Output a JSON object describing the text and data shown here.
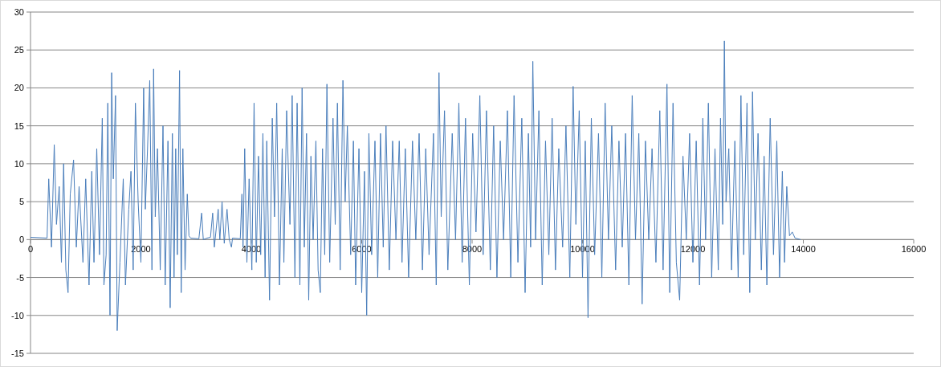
{
  "chart_data": {
    "type": "line",
    "xlim": [
      0,
      16000
    ],
    "xticks": [
      0,
      2000,
      4000,
      6000,
      8000,
      10000,
      12000,
      14000,
      16000
    ],
    "ylim": [
      -15,
      30
    ],
    "yticks": [
      -15,
      -10,
      -5,
      0,
      5,
      10,
      15,
      20,
      25,
      30
    ],
    "grid": "y",
    "marker": "none",
    "line_style": "solid",
    "series": [
      {
        "color": "#4a7ebb",
        "x": [
          0,
          300,
          330,
          380,
          430,
          470,
          520,
          560,
          600,
          640,
          680,
          720,
          780,
          830,
          880,
          950,
          1000,
          1060,
          1110,
          1150,
          1200,
          1250,
          1300,
          1330,
          1370,
          1400,
          1440,
          1470,
          1500,
          1540,
          1570,
          1620,
          1680,
          1720,
          1780,
          1820,
          1860,
          1900,
          1950,
          2000,
          2050,
          2080,
          2120,
          2160,
          2200,
          2230,
          2260,
          2300,
          2350,
          2400,
          2440,
          2490,
          2530,
          2570,
          2600,
          2630,
          2660,
          2700,
          2730,
          2760,
          2800,
          2840,
          2870,
          2900,
          3050,
          3100,
          3130,
          3200,
          3260,
          3300,
          3330,
          3400,
          3430,
          3470,
          3510,
          3560,
          3600,
          3640,
          3660,
          3800,
          3830,
          3850,
          3880,
          3920,
          3960,
          4010,
          4050,
          4090,
          4130,
          4170,
          4210,
          4250,
          4280,
          4330,
          4380,
          4420,
          4460,
          4510,
          4560,
          4590,
          4640,
          4700,
          4740,
          4790,
          4830,
          4880,
          4920,
          4960,
          5000,
          5040,
          5080,
          5120,
          5170,
          5210,
          5250,
          5290,
          5330,
          5370,
          5420,
          5480,
          5520,
          5560,
          5610,
          5660,
          5700,
          5740,
          5800,
          5850,
          5890,
          5950,
          6000,
          6050,
          6090,
          6130,
          6180,
          6240,
          6290,
          6340,
          6390,
          6440,
          6500,
          6560,
          6620,
          6680,
          6730,
          6790,
          6850,
          6920,
          6980,
          7040,
          7100,
          7160,
          7220,
          7300,
          7350,
          7400,
          7440,
          7500,
          7560,
          7640,
          7700,
          7760,
          7820,
          7880,
          7950,
          8010,
          8070,
          8140,
          8200,
          8260,
          8330,
          8390,
          8450,
          8510,
          8570,
          8640,
          8700,
          8760,
          8830,
          8900,
          8960,
          9020,
          9060,
          9100,
          9150,
          9210,
          9270,
          9330,
          9390,
          9450,
          9510,
          9570,
          9640,
          9700,
          9770,
          9830,
          9880,
          9940,
          10000,
          10050,
          10100,
          10160,
          10220,
          10290,
          10350,
          10410,
          10470,
          10530,
          10600,
          10660,
          10720,
          10780,
          10840,
          10900,
          10960,
          11020,
          11080,
          11140,
          11200,
          11260,
          11330,
          11400,
          11460,
          11530,
          11580,
          11640,
          11700,
          11760,
          11820,
          11880,
          11940,
          12000,
          12060,
          12120,
          12180,
          12230,
          12280,
          12340,
          12400,
          12460,
          12500,
          12540,
          12570,
          12600,
          12650,
          12700,
          12760,
          12820,
          12870,
          12920,
          12980,
          13030,
          13080,
          13130,
          13180,
          13240,
          13290,
          13340,
          13400,
          13460,
          13520,
          13570,
          13620,
          13660,
          13700,
          13750,
          13800,
          13850,
          13950
        ],
        "values": [
          0.3,
          0.2,
          8,
          -1,
          12.5,
          2,
          7,
          -3,
          10,
          -4,
          -7,
          6,
          10.5,
          -1,
          7,
          -3,
          8,
          -6,
          9,
          -3,
          12,
          -2,
          16,
          -6,
          -2,
          18,
          -10,
          22,
          8,
          19,
          -12,
          -3,
          8,
          -6,
          4,
          9,
          -4,
          18,
          5,
          -3,
          20,
          4,
          12,
          21,
          -4,
          22.5,
          3,
          12,
          -4,
          15,
          -6,
          13,
          -9,
          14,
          -5,
          12,
          -2,
          22.3,
          -7,
          12,
          -4,
          6,
          0.5,
          0.2,
          0.1,
          3.5,
          0,
          0.2,
          0.3,
          3.5,
          -1,
          4,
          0,
          5,
          -0.5,
          4,
          0,
          -1,
          0.2,
          0.1,
          6,
          -1,
          12,
          -3,
          8,
          -4,
          18,
          -3,
          11,
          -2,
          14,
          -5,
          13,
          -8,
          16,
          3,
          18,
          -6,
          12,
          -3,
          17,
          2,
          19,
          -5,
          18,
          -6,
          20,
          -1,
          14,
          -8,
          11,
          0,
          13,
          -4,
          -7,
          12,
          -2,
          20.5,
          -3,
          16,
          2,
          18,
          -4,
          21,
          5,
          15,
          -2,
          13,
          -6,
          12,
          -7,
          9,
          -10,
          14,
          -2,
          13,
          -5,
          14,
          -1,
          15,
          -4,
          13,
          0,
          13,
          -3,
          12,
          -5,
          13,
          0,
          14,
          -4,
          12,
          -2,
          14,
          -6,
          22,
          3,
          17,
          -4,
          14,
          0,
          18,
          -3,
          16,
          -6,
          14,
          1,
          19,
          -2,
          17,
          -4,
          15,
          -5,
          13,
          0,
          17,
          -5,
          19,
          -3,
          16,
          -7,
          14,
          -1,
          23.5,
          0,
          17,
          -6,
          13,
          -2,
          16,
          -4,
          12,
          -1,
          15,
          -5,
          20.2,
          2,
          17,
          -5,
          13,
          -10.3,
          16,
          -2,
          14,
          -5,
          18,
          0,
          15,
          -4,
          13,
          -1,
          14,
          -6,
          19,
          0,
          14,
          -8.5,
          13,
          0,
          12,
          -3,
          17,
          -4,
          20.5,
          -7,
          18,
          -3,
          -8,
          11,
          0,
          14,
          -3,
          13,
          -6,
          16,
          0,
          18,
          -5,
          12,
          -4,
          16,
          2,
          26.2,
          5,
          12,
          -4,
          13,
          -5,
          19,
          -2,
          18,
          -7,
          19.5,
          0,
          14,
          -4,
          11,
          -6,
          16,
          -2,
          13,
          -5,
          9,
          -3,
          7,
          0.5,
          1,
          0.2,
          0
        ]
      }
    ]
  }
}
